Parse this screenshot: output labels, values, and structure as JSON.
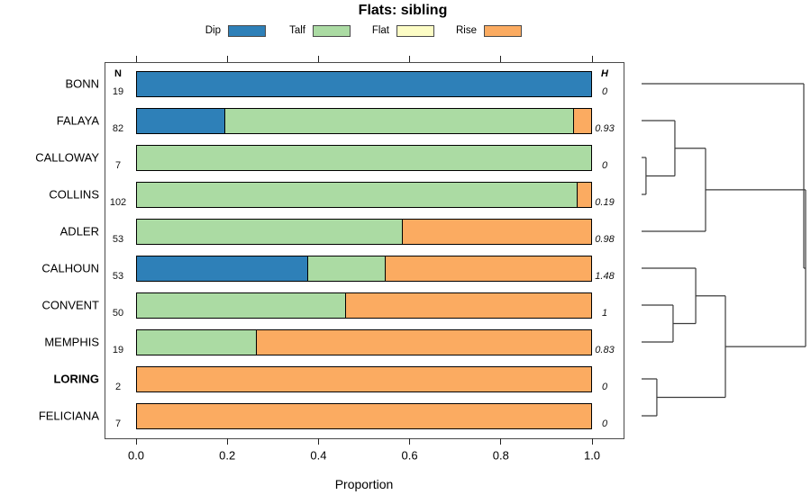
{
  "title": "Flats: sibling",
  "legend": [
    {
      "label": "Dip",
      "color": "#2E80B8"
    },
    {
      "label": "Talf",
      "color": "#ABDBA3"
    },
    {
      "label": "Flat",
      "color": "#FCFCC5"
    },
    {
      "label": "Rise",
      "color": "#FBAB61"
    }
  ],
  "axis": {
    "label": "Proportion",
    "tick_labels": [
      "0.0",
      "0.2",
      "0.4",
      "0.6",
      "0.8",
      "1.0"
    ],
    "tick_values": [
      0,
      0.2,
      0.4,
      0.6,
      0.8,
      1.0
    ]
  },
  "chart_data": {
    "type": "bar",
    "stacked": true,
    "orientation": "horizontal",
    "title": "Flats: sibling",
    "xlabel": "Proportion",
    "xlim": [
      0,
      1
    ],
    "grid": false,
    "series_order": [
      "Dip",
      "Talf",
      "Flat",
      "Rise"
    ],
    "colors": {
      "Dip": "#2E80B8",
      "Talf": "#ABDBA3",
      "Flat": "#FCFCC5",
      "Rise": "#FBAB61"
    },
    "columns": {
      "n_header": "N",
      "h_header": "H"
    },
    "rows": [
      {
        "label": "BONN",
        "n": 19,
        "h": "0",
        "bold": false,
        "values": {
          "Dip": 1,
          "Talf": 0,
          "Flat": 0,
          "Rise": 0
        }
      },
      {
        "label": "FALAYA",
        "n": 82,
        "h": "0.93",
        "bold": false,
        "values": {
          "Dip": 0.195,
          "Talf": 0.768,
          "Flat": 0,
          "Rise": 0.037
        }
      },
      {
        "label": "CALLOWAY",
        "n": 7,
        "h": "0",
        "bold": false,
        "values": {
          "Dip": 0,
          "Talf": 1,
          "Flat": 0,
          "Rise": 0
        }
      },
      {
        "label": "COLLINS",
        "n": 102,
        "h": "0.19",
        "bold": false,
        "values": {
          "Dip": 0,
          "Talf": 0.971,
          "Flat": 0,
          "Rise": 0.029
        }
      },
      {
        "label": "ADLER",
        "n": 53,
        "h": "0.98",
        "bold": false,
        "values": {
          "Dip": 0,
          "Talf": 0.585,
          "Flat": 0,
          "Rise": 0.415
        }
      },
      {
        "label": "CALHOUN",
        "n": 53,
        "h": "1.48",
        "bold": false,
        "values": {
          "Dip": 0.377,
          "Talf": 0.17,
          "Flat": 0,
          "Rise": 0.453
        }
      },
      {
        "label": "CONVENT",
        "n": 50,
        "h": "1",
        "bold": false,
        "values": {
          "Dip": 0,
          "Talf": 0.46,
          "Flat": 0,
          "Rise": 0.54
        }
      },
      {
        "label": "MEMPHIS",
        "n": 19,
        "h": "0.83",
        "bold": false,
        "values": {
          "Dip": 0,
          "Talf": 0.263,
          "Flat": 0,
          "Rise": 0.737
        }
      },
      {
        "label": "LORING",
        "n": 2,
        "h": "0",
        "bold": true,
        "values": {
          "Dip": 0,
          "Talf": 0,
          "Flat": 0,
          "Rise": 1
        }
      },
      {
        "label": "FELICIANA",
        "n": 7,
        "h": "0",
        "bold": false,
        "values": {
          "Dip": 0,
          "Talf": 0,
          "Flat": 0,
          "Rise": 1
        }
      }
    ],
    "dendrogram": {
      "leaves": [
        "BONN",
        "FALAYA",
        "CALLOWAY",
        "COLLINS",
        "ADLER",
        "CALHOUN",
        "CONVENT",
        "MEMPHIS",
        "LORING",
        "FELICIANA"
      ],
      "merges": [
        {
          "id": "m0",
          "children": [
            "CALLOWAY",
            "COLLINS"
          ],
          "height": 0.027
        },
        {
          "id": "m1",
          "children": [
            "LORING",
            "FELICIANA"
          ],
          "height": 0.093
        },
        {
          "id": "m2",
          "children": [
            "CONVENT",
            "MEMPHIS"
          ],
          "height": 0.192
        },
        {
          "id": "m3",
          "children": [
            "FALAYA",
            "m0"
          ],
          "height": 0.203
        },
        {
          "id": "m4",
          "children": [
            "CALHOUN",
            "m2"
          ],
          "height": 0.33
        },
        {
          "id": "m5",
          "children": [
            "m3",
            "ADLER"
          ],
          "height": 0.39
        },
        {
          "id": "m6",
          "children": [
            "m4",
            "m1"
          ],
          "height": 0.511
        },
        {
          "id": "m7",
          "children": [
            "m5",
            "m6"
          ],
          "height": 1.0
        },
        {
          "id": "m8",
          "children": [
            "BONN",
            "m7"
          ],
          "height": 0.989
        }
      ]
    }
  }
}
